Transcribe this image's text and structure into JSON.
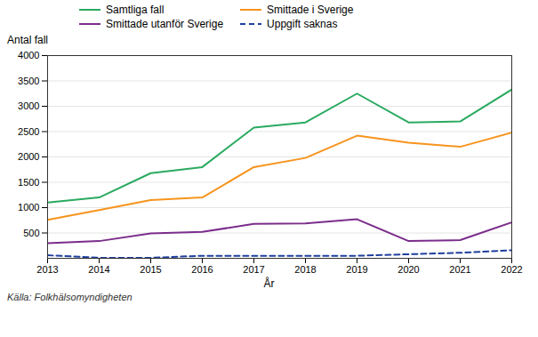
{
  "chart_data": {
    "type": "line",
    "x": [
      2013,
      2014,
      2015,
      2016,
      2017,
      2018,
      2019,
      2020,
      2021,
      2022
    ],
    "series": [
      {
        "name": "Samtliga fall",
        "color": "#2aaa60",
        "line_style": "solid",
        "values": [
          1100,
          1200,
          1680,
          1800,
          2580,
          2680,
          3250,
          2680,
          2700,
          3330
        ]
      },
      {
        "name": "Smittade i Sverige",
        "color": "#f7941d",
        "line_style": "solid",
        "values": [
          760,
          950,
          1150,
          1200,
          1800,
          1980,
          2420,
          2280,
          2200,
          2480
        ]
      },
      {
        "name": "Smittade utanför Sverige",
        "color": "#7b2d8b",
        "line_style": "solid",
        "values": [
          300,
          340,
          490,
          520,
          680,
          690,
          770,
          340,
          360,
          710
        ]
      },
      {
        "name": "Uppgift saknas",
        "color": "#1f3f9c",
        "line_style": "dashed",
        "values": [
          60,
          10,
          10,
          50,
          50,
          50,
          50,
          80,
          110,
          160
        ]
      }
    ],
    "ylabel": "Antal fall",
    "xlabel": "År",
    "source": "Källa: Folkhälsomyndigheten",
    "xlim": [
      2013,
      2022
    ],
    "xticks": [
      2013,
      2014,
      2015,
      2016,
      2017,
      2018,
      2019,
      2020,
      2021,
      2022
    ],
    "ylim": [
      0,
      4000
    ],
    "yticks": [
      500,
      1000,
      1500,
      2000,
      2500,
      3000,
      3500,
      4000
    ],
    "grid": true,
    "legend": "top"
  }
}
